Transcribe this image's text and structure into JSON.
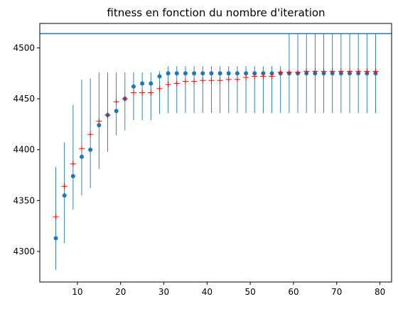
{
  "chart_data": {
    "type": "scatter",
    "title": "fitness en fonction du nombre d'iteration",
    "xlabel": "",
    "ylabel": "",
    "xlim": [
      1.3,
      82.7
    ],
    "ylim": [
      4270,
      4524
    ],
    "x_ticks": [
      10,
      20,
      30,
      40,
      50,
      60,
      70,
      80
    ],
    "y_ticks": [
      4300,
      4350,
      4400,
      4450,
      4500
    ],
    "grid": false,
    "legend": "none",
    "hline": {
      "y": 4514,
      "color": "#1f77b4"
    },
    "x": [
      5,
      7,
      9,
      11,
      13,
      15,
      17,
      19,
      21,
      23,
      25,
      27,
      29,
      31,
      33,
      35,
      37,
      39,
      41,
      43,
      45,
      47,
      49,
      51,
      53,
      55,
      57,
      59,
      61,
      63,
      65,
      67,
      69,
      71,
      73,
      75,
      77,
      79
    ],
    "series": [
      {
        "marker": "dot",
        "color": "#1f77b4",
        "values": [
          4313,
          4355,
          4374,
          4393,
          4400,
          4424,
          4434,
          4438,
          4450,
          4462,
          4465,
          4465,
          4472,
          4475,
          4475,
          4475,
          4475,
          4475,
          4475,
          4475,
          4475,
          4475,
          4475,
          4475,
          4475,
          4475,
          4475,
          4475,
          4475,
          4475,
          4475,
          4475,
          4475,
          4475,
          4475,
          4475,
          4475,
          4475
        ],
        "err_low": [
          4282,
          4308,
          4341,
          4355,
          4362,
          4381,
          4398,
          4414,
          4419,
          4429,
          4429,
          4429,
          4435,
          4436,
          4436,
          4436,
          4436,
          4436,
          4436,
          4436,
          4436,
          4436,
          4436,
          4436,
          4436,
          4436,
          4436,
          4436,
          4436,
          4436,
          4436,
          4436,
          4436,
          4436,
          4436,
          4436,
          4436,
          4436
        ],
        "err_high": [
          4383,
          4407,
          4444,
          4469,
          4470,
          4476,
          4476,
          4476,
          4476,
          4476,
          4476,
          4476,
          4477,
          4482,
          4482,
          4482,
          4482,
          4482,
          4482,
          4482,
          4482,
          4482,
          4482,
          4482,
          4482,
          4482,
          4482,
          4514,
          4514,
          4514,
          4514,
          4514,
          4514,
          4514,
          4514,
          4514,
          4514,
          4514
        ]
      },
      {
        "marker": "plus",
        "color": "#ff0000",
        "values": [
          4334,
          4364,
          4386,
          4401,
          4415,
          4428,
          4434,
          4447,
          4450,
          4456,
          4456,
          4456,
          4460,
          4464,
          4465,
          4467,
          4467,
          4468,
          4468,
          4468,
          4469,
          4469,
          4471,
          4472,
          4472,
          4472,
          4476,
          4476,
          4476,
          4477,
          4477,
          4477,
          4477,
          4477,
          4477,
          4477,
          4477,
          4477
        ]
      }
    ]
  }
}
